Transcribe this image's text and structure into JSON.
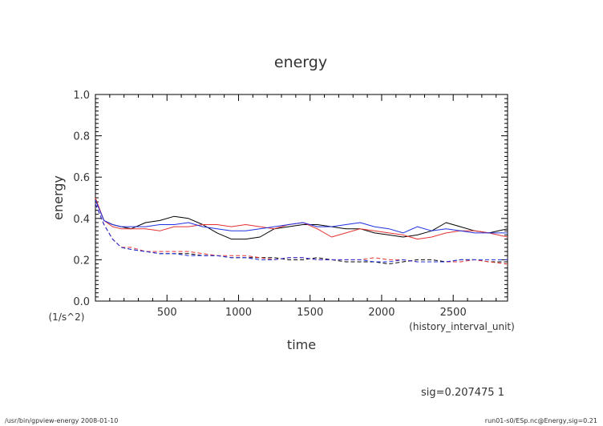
{
  "chart_data": {
    "type": "line",
    "title": "energy",
    "xlabel": "time",
    "ylabel": "energy",
    "x_unit": "(history_interval_unit)",
    "y_unit": "(1/s^2)",
    "xlim": [
      0,
      2880
    ],
    "ylim": [
      0.0,
      1.0
    ],
    "x_ticks": [
      500,
      1000,
      1500,
      2000,
      2500
    ],
    "x_tick_labels": [
      "500",
      "1000",
      "1500",
      "2000",
      "2500"
    ],
    "y_ticks": [
      0.0,
      0.2,
      0.4,
      0.6,
      0.8,
      1.0
    ],
    "y_tick_labels": [
      "0.0",
      "0.2",
      "0.4",
      "0.6",
      "0.8",
      "1.0"
    ],
    "grid": false,
    "x": [
      0,
      60,
      120,
      180,
      250,
      350,
      450,
      550,
      650,
      750,
      850,
      950,
      1050,
      1150,
      1250,
      1350,
      1450,
      1550,
      1650,
      1750,
      1850,
      1950,
      2050,
      2150,
      2250,
      2350,
      2450,
      2550,
      2650,
      2750,
      2880
    ],
    "series": [
      {
        "name": "solid-black",
        "color": "#000000",
        "dash": "solid",
        "values": [
          0.49,
          0.39,
          0.37,
          0.36,
          0.35,
          0.38,
          0.39,
          0.41,
          0.4,
          0.37,
          0.33,
          0.3,
          0.3,
          0.31,
          0.35,
          0.36,
          0.37,
          0.37,
          0.36,
          0.35,
          0.35,
          0.33,
          0.32,
          0.31,
          0.32,
          0.34,
          0.38,
          0.36,
          0.34,
          0.33,
          0.35
        ]
      },
      {
        "name": "solid-red",
        "color": "#e53030",
        "dash": "solid",
        "values": [
          0.5,
          0.39,
          0.36,
          0.35,
          0.35,
          0.35,
          0.34,
          0.36,
          0.36,
          0.37,
          0.37,
          0.36,
          0.37,
          0.36,
          0.35,
          0.37,
          0.38,
          0.35,
          0.31,
          0.33,
          0.35,
          0.34,
          0.33,
          0.32,
          0.3,
          0.31,
          0.33,
          0.34,
          0.34,
          0.33,
          0.31
        ]
      },
      {
        "name": "solid-blue",
        "color": "#2030e0",
        "dash": "solid",
        "values": [
          0.49,
          0.39,
          0.37,
          0.36,
          0.36,
          0.36,
          0.37,
          0.37,
          0.38,
          0.36,
          0.35,
          0.34,
          0.34,
          0.35,
          0.36,
          0.37,
          0.38,
          0.36,
          0.36,
          0.37,
          0.38,
          0.36,
          0.35,
          0.33,
          0.36,
          0.34,
          0.35,
          0.34,
          0.33,
          0.33,
          0.33
        ]
      },
      {
        "name": "dashed-black",
        "color": "#000000",
        "dash": "dashed",
        "values": [
          0.47,
          0.37,
          0.3,
          0.26,
          0.25,
          0.24,
          0.23,
          0.23,
          0.23,
          0.22,
          0.22,
          0.21,
          0.21,
          0.21,
          0.21,
          0.2,
          0.2,
          0.21,
          0.2,
          0.19,
          0.19,
          0.19,
          0.18,
          0.19,
          0.2,
          0.2,
          0.19,
          0.2,
          0.2,
          0.19,
          0.19
        ]
      },
      {
        "name": "dashed-red",
        "color": "#e53030",
        "dash": "dashed",
        "values": [
          0.47,
          0.37,
          0.3,
          0.26,
          0.26,
          0.24,
          0.24,
          0.24,
          0.24,
          0.23,
          0.22,
          0.22,
          0.22,
          0.21,
          0.2,
          0.21,
          0.21,
          0.2,
          0.2,
          0.2,
          0.2,
          0.21,
          0.2,
          0.2,
          0.19,
          0.19,
          0.19,
          0.19,
          0.2,
          0.19,
          0.18
        ]
      },
      {
        "name": "dashed-blue",
        "color": "#2030e0",
        "dash": "dashed",
        "values": [
          0.47,
          0.37,
          0.3,
          0.26,
          0.25,
          0.24,
          0.23,
          0.23,
          0.22,
          0.22,
          0.22,
          0.21,
          0.21,
          0.2,
          0.2,
          0.21,
          0.21,
          0.2,
          0.2,
          0.2,
          0.2,
          0.19,
          0.19,
          0.2,
          0.19,
          0.19,
          0.19,
          0.2,
          0.2,
          0.2,
          0.2
        ]
      }
    ]
  },
  "annotation": "sig=0.207475 1",
  "footer": {
    "left": "/usr/bin/gpview-energy  2008-01-10",
    "right": "run01-s0/ESp.nc@Energy,sig=0.21"
  }
}
